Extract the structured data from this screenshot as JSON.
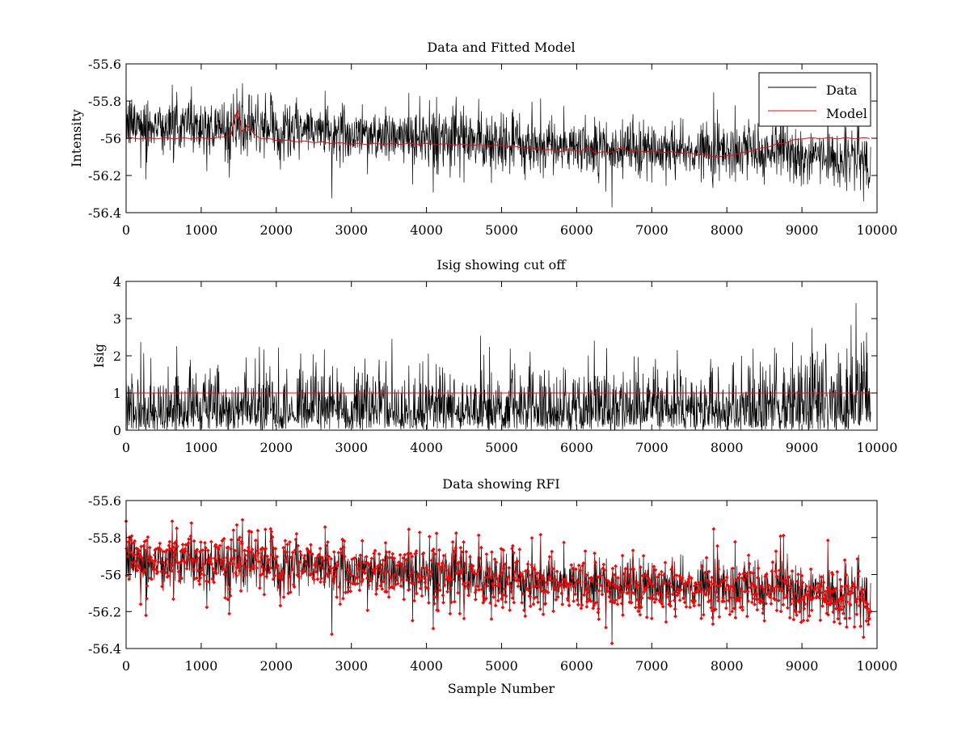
{
  "figure_xlabel": "Sample Number",
  "colors": {
    "data": "#000000",
    "model": "#ff0000",
    "cutoff": "#ff0000",
    "rfi": "#ff0000",
    "axes": "#000000"
  },
  "chart_data": [
    {
      "type": "line",
      "title": "Data and Fitted Model",
      "xlabel": "",
      "ylabel": "Intensity",
      "xlim": [
        0,
        10000
      ],
      "ylim": [
        -56.4,
        -55.6
      ],
      "xticks": [
        "0",
        "1000",
        "2000",
        "3000",
        "4000",
        "5000",
        "6000",
        "7000",
        "8000",
        "9000",
        "10000"
      ],
      "yticks": [
        "-55.6",
        "-55.8",
        "-56",
        "-56.2",
        "-56.4"
      ],
      "legend": {
        "placement": "top-right",
        "entries": [
          "Data",
          "Model"
        ]
      },
      "grid": false,
      "n_samples": 9920,
      "data_trend": {
        "x": [
          0,
          2000,
          4000,
          6000,
          8000,
          9920
        ],
        "y": [
          -55.92,
          -55.95,
          -56.0,
          -56.05,
          -56.06,
          -56.12
        ]
      },
      "data_noise_sigma": 0.075,
      "series": [
        {
          "name": "Data",
          "color": "#000000",
          "kind": "noisy"
        },
        {
          "name": "Model",
          "color": "#ff0000",
          "x": [
            0,
            1200,
            1400,
            1480,
            1540,
            1620,
            1700,
            1800,
            2000,
            3000,
            4000,
            5000,
            5800,
            5950,
            6050,
            6180,
            6250,
            6500,
            6600,
            6700,
            7000,
            7500,
            7900,
            8200,
            8500,
            8800,
            9000,
            9920
          ],
          "y": [
            -56.0,
            -56.0,
            -55.98,
            -55.85,
            -55.96,
            -55.93,
            -55.98,
            -56.0,
            -56.01,
            -56.03,
            -56.03,
            -56.04,
            -56.07,
            -56.06,
            -56.07,
            -56.05,
            -56.08,
            -56.07,
            -56.05,
            -56.07,
            -56.07,
            -56.08,
            -56.1,
            -56.08,
            -56.05,
            -56.02,
            -56.0,
            -56.0
          ]
        }
      ]
    },
    {
      "type": "line",
      "title": "Isig showing cut off",
      "xlabel": "",
      "ylabel": "Isig",
      "xlim": [
        0,
        10000
      ],
      "ylim": [
        0,
        4
      ],
      "xticks": [
        "0",
        "1000",
        "2000",
        "3000",
        "4000",
        "5000",
        "6000",
        "7000",
        "8000",
        "9000",
        "10000"
      ],
      "yticks": [
        "4",
        "3",
        "2",
        "1",
        "0"
      ],
      "grid": false,
      "n_samples": 9920,
      "isig_scale": {
        "x": [
          0,
          8800,
          9000,
          9920
        ],
        "y": [
          0.78,
          0.78,
          1.15,
          1.15
        ]
      },
      "cutoff": 1,
      "series": [
        {
          "name": "",
          "color": "#000000",
          "kind": "isig"
        },
        {
          "name": "",
          "color": "#ff0000",
          "kind": "cutoff",
          "x": [
            0,
            10000
          ],
          "y": [
            1,
            1
          ]
        }
      ]
    },
    {
      "type": "line",
      "title": "Data showing RFI",
      "xlabel": "Sample Number",
      "ylabel": "",
      "xlim": [
        0,
        10000
      ],
      "ylim": [
        -56.4,
        -55.6
      ],
      "xticks": [
        "0",
        "1000",
        "2000",
        "3000",
        "4000",
        "5000",
        "6000",
        "7000",
        "8000",
        "9000",
        "10000"
      ],
      "yticks": [
        "-55.6",
        "-55.8",
        "-56",
        "-56.2",
        "-56.4"
      ],
      "grid": false,
      "n_samples": 9920,
      "series": [
        {
          "name": "",
          "color": "#000000",
          "kind": "noisy"
        },
        {
          "name": "",
          "color": "#ff0000",
          "kind": "rfi-markers"
        }
      ]
    }
  ]
}
